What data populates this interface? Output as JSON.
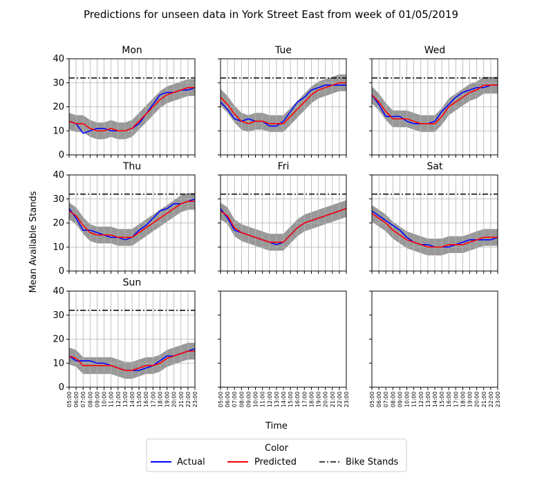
{
  "figure": {
    "title": "Predictions for unseen data in York Street East from week of 01/05/2019",
    "xlabel": "Time",
    "ylabel": "Mean Available Stands"
  },
  "legend": {
    "title": "Color",
    "entries": [
      {
        "label": "Actual",
        "color": "#0000ff",
        "style": "solid"
      },
      {
        "label": "Predicted",
        "color": "#ff0000",
        "style": "solid"
      },
      {
        "label": "Bike Stands",
        "color": "#000000",
        "style": "dashdot"
      }
    ]
  },
  "colors": {
    "band": "#999999",
    "grid": "#b0b0b0",
    "actual": "#0000ff",
    "predicted": "#ff0000",
    "capacity": "#000000"
  },
  "chart_data": {
    "type": "line",
    "x": [
      "05:00",
      "06:00",
      "07:00",
      "08:00",
      "09:00",
      "10:00",
      "11:00",
      "12:00",
      "13:00",
      "14:00",
      "15:00",
      "16:00",
      "17:00",
      "18:00",
      "19:00",
      "20:00",
      "21:00",
      "22:00",
      "23:00"
    ],
    "yticks": [
      0,
      10,
      20,
      30,
      40
    ],
    "ylim": [
      0,
      40
    ],
    "grid": true,
    "bike_stands": 32,
    "band_half_width": 3.5,
    "panels": [
      {
        "title": "Mon",
        "actual": [
          14,
          13,
          9,
          10,
          11,
          11,
          10,
          10,
          10,
          11,
          13,
          17,
          21,
          25,
          26,
          26,
          27,
          27,
          28
        ],
        "predicted": [
          14,
          13,
          13,
          11,
          10,
          10,
          11,
          10,
          10,
          11,
          14,
          17,
          20,
          23,
          25,
          26,
          27,
          28,
          28
        ]
      },
      {
        "title": "Tue",
        "actual": [
          22,
          19,
          15,
          14,
          15,
          14,
          14,
          12,
          12,
          14,
          18,
          22,
          24,
          27,
          28,
          29,
          29,
          29,
          29
        ],
        "predicted": [
          24,
          21,
          17,
          14,
          13,
          14,
          14,
          13,
          13,
          13,
          16,
          19,
          22,
          25,
          27,
          28,
          29,
          30,
          30
        ]
      },
      {
        "title": "Wed",
        "actual": [
          25,
          21,
          16,
          16,
          16,
          14,
          13,
          13,
          13,
          14,
          18,
          21,
          24,
          26,
          27,
          28,
          28,
          29,
          29
        ],
        "predicted": [
          25,
          22,
          18,
          15,
          15,
          15,
          14,
          13,
          13,
          13,
          16,
          20,
          22,
          24,
          26,
          27,
          29,
          29,
          29
        ]
      },
      {
        "title": "Thu",
        "actual": [
          26,
          22,
          17,
          17,
          16,
          15,
          14,
          14,
          13,
          14,
          17,
          19,
          22,
          25,
          26,
          28,
          28,
          29,
          30
        ],
        "predicted": [
          25,
          23,
          19,
          16,
          15,
          15,
          15,
          14,
          14,
          14,
          16,
          18,
          20,
          22,
          24,
          26,
          28,
          29,
          29
        ]
      },
      {
        "title": "Fri",
        "actual": [
          26,
          22,
          17,
          16,
          15,
          14,
          13,
          12,
          11,
          12,
          15,
          18,
          20,
          21,
          22,
          23,
          24,
          25,
          26
        ],
        "predicted": [
          25,
          23,
          18,
          16,
          15,
          14,
          13,
          12,
          12,
          12,
          15,
          18,
          20,
          21,
          22,
          23,
          24,
          25,
          26
        ]
      },
      {
        "title": "Sat",
        "actual": [
          25,
          23,
          21,
          19,
          17,
          14,
          12,
          11,
          11,
          10,
          10,
          10,
          11,
          12,
          13,
          13,
          13,
          13,
          14
        ],
        "predicted": [
          24,
          22,
          20,
          17,
          15,
          13,
          12,
          11,
          10,
          10,
          10,
          11,
          11,
          11,
          12,
          13,
          14,
          14,
          14
        ]
      },
      {
        "title": "Sun",
        "actual": [
          13,
          11,
          11,
          11,
          10,
          10,
          9,
          8,
          7,
          7,
          7,
          8,
          9,
          11,
          13,
          13,
          14,
          15,
          16
        ],
        "predicted": [
          13,
          12,
          9,
          9,
          9,
          9,
          9,
          8,
          7,
          7,
          8,
          9,
          9,
          10,
          12,
          13,
          14,
          15,
          15
        ]
      },
      {
        "title": ""
      },
      {
        "title": ""
      }
    ]
  }
}
